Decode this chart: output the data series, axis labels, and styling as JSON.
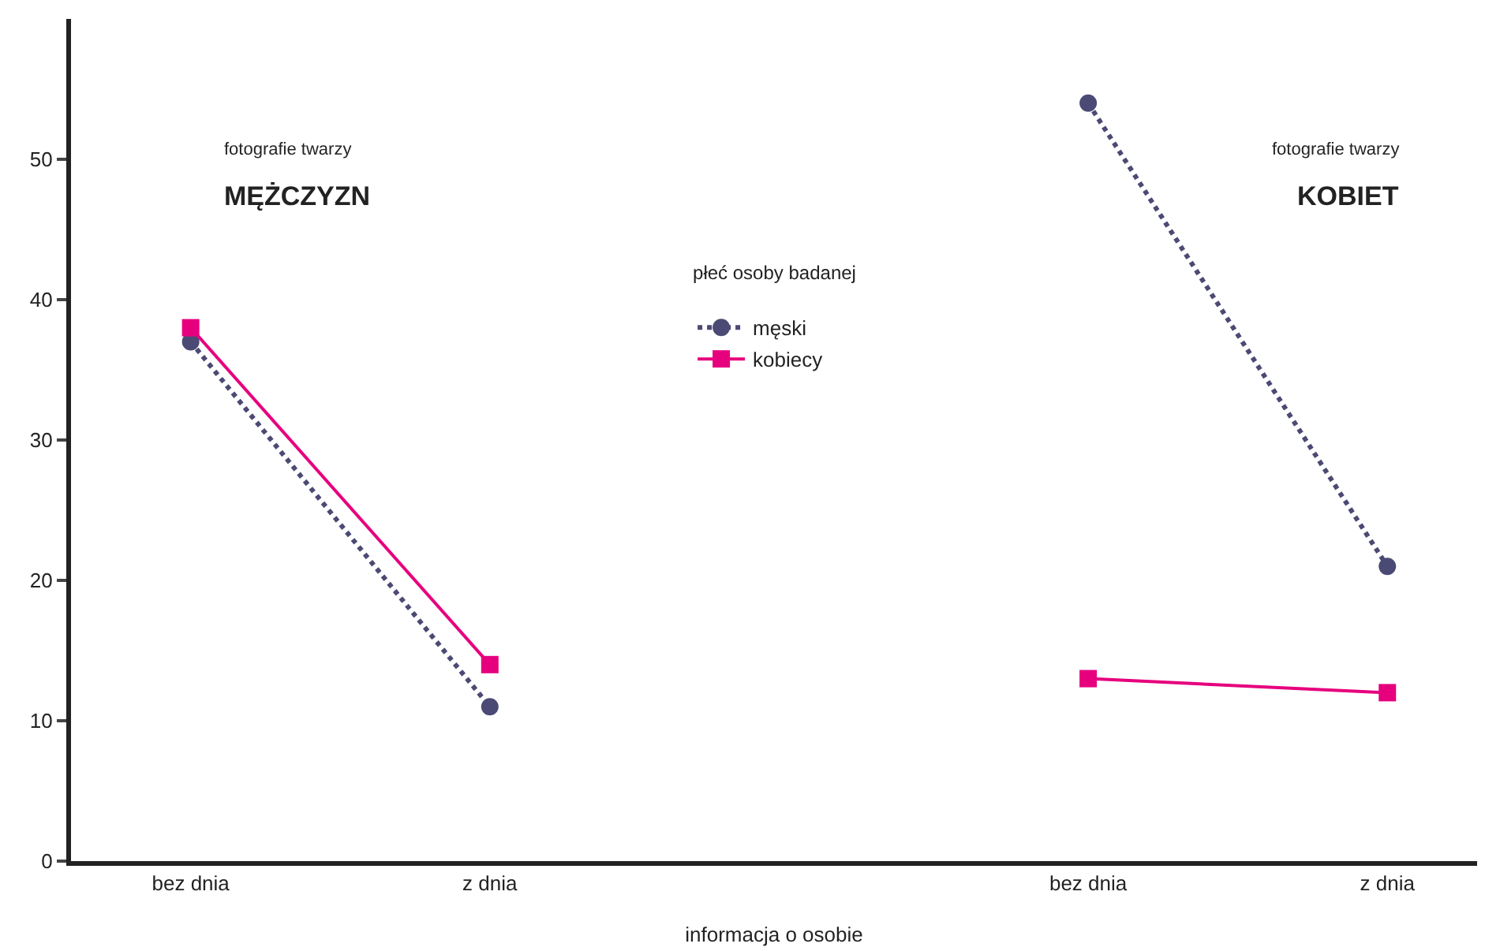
{
  "chart_data": {
    "type": "line",
    "categories": [
      "bez dnia",
      "z dnia",
      null,
      "bez dnia",
      "z dnia"
    ],
    "series": [
      {
        "name": "męski",
        "color": "#4b4a74",
        "values": [
          37,
          11,
          null,
          54,
          21
        ],
        "marker": "circle",
        "line_style": "dotted"
      },
      {
        "name": "kobiecy",
        "color": "#e6007e",
        "values": [
          38,
          14,
          null,
          13,
          12
        ],
        "marker": "square",
        "line_style": "solid"
      }
    ],
    "ylim": [
      0,
      60
    ],
    "yticks": [
      0,
      10,
      20,
      30,
      40,
      50
    ],
    "xlabel": "informacja o osobie",
    "legend_title": "płeć osoby badanej",
    "legend": "top",
    "grid": false,
    "annotations": [
      "fotografie twarzy",
      "MĘŻCZYZN",
      "fotografie twarzy",
      "KOBIET"
    ]
  }
}
